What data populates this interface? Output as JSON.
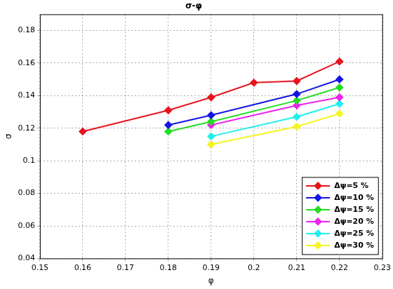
{
  "chart_data": {
    "type": "line",
    "title": "σ-φ",
    "x_label": "φ",
    "y_label": "σ",
    "xlim": [
      0.15,
      0.23
    ],
    "xticks": [
      0.15,
      0.16,
      0.17,
      0.18,
      0.19,
      0.2,
      0.21,
      0.22,
      0.23
    ],
    "ylim": [
      0.04,
      0.19
    ],
    "yticks": [
      0.04,
      0.06,
      0.08,
      0.1,
      0.12,
      0.14,
      0.16,
      0.18
    ],
    "grid": true,
    "legend": "lower right",
    "marker": "diamond",
    "series": [
      {
        "name": "Δψ=5 %",
        "color": "#e8141c",
        "x": [
          0.16,
          0.18,
          0.19,
          0.2,
          0.21,
          0.22
        ],
        "values": [
          0.118,
          0.131,
          0.139,
          0.148,
          0.149,
          0.161
        ]
      },
      {
        "name": "Δψ=10 %",
        "color": "#1414e6",
        "x": [
          0.18,
          0.19,
          0.21,
          0.22
        ],
        "values": [
          0.122,
          0.128,
          0.141,
          0.15
        ]
      },
      {
        "name": "Δψ=15 %",
        "color": "#22dd22",
        "x": [
          0.18,
          0.19,
          0.21,
          0.22
        ],
        "values": [
          0.118,
          0.124,
          0.137,
          0.145
        ]
      },
      {
        "name": "Δψ=20 %",
        "color": "#ee22ee",
        "x": [
          0.19,
          0.21,
          0.22
        ],
        "values": [
          0.122,
          0.134,
          0.139
        ]
      },
      {
        "name": "Δψ=25 %",
        "color": "#22eeee",
        "x": [
          0.19,
          0.21,
          0.22
        ],
        "values": [
          0.115,
          0.127,
          0.135
        ]
      },
      {
        "name": "Δψ=30 %",
        "color": "#f5f522",
        "x": [
          0.19,
          0.21,
          0.22
        ],
        "values": [
          0.11,
          0.121,
          0.129
        ]
      }
    ]
  }
}
